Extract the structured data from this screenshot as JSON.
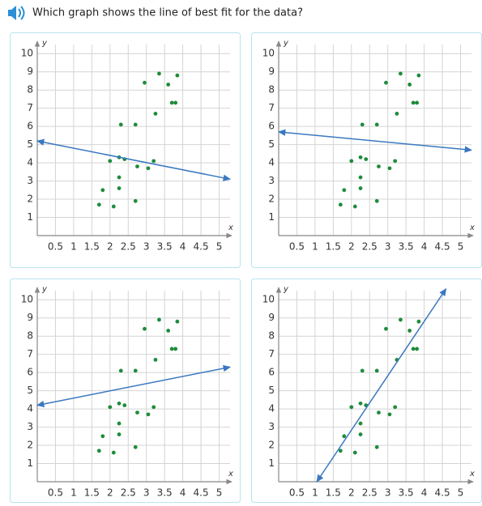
{
  "question": "Which graph shows the line of best fit for the data?",
  "chart_data": [
    {
      "type": "scatter",
      "x_label": "x",
      "y_label": "y",
      "xlim": [
        0,
        5.3
      ],
      "ylim": [
        0,
        10.5
      ],
      "xticks": [
        0.5,
        1,
        1.5,
        2,
        2.5,
        3,
        3.5,
        4,
        4.5,
        5
      ],
      "yticks": [
        1,
        2,
        3,
        4,
        5,
        6,
        7,
        8,
        9,
        10
      ],
      "grid": true,
      "color": "#1e8c3a",
      "x": [
        1.7,
        1.8,
        2.1,
        2,
        2.25,
        2.25,
        2.25,
        2.4,
        2.3,
        2.7,
        2.7,
        2.75,
        2.95,
        3.05,
        3.2,
        3.25,
        3.35,
        3.6,
        3.7,
        3.8,
        3.85
      ],
      "values": [
        1.7,
        2.5,
        1.6,
        4.1,
        3.2,
        2.6,
        4.3,
        4.2,
        6.1,
        6.1,
        1.9,
        3.8,
        8.4,
        3.7,
        4.1,
        6.7,
        8.9,
        8.3,
        7.3,
        7.3,
        8.8
      ],
      "line": {
        "x": [
          0,
          5.3
        ],
        "values": [
          5.2,
          3.1
        ],
        "color": "#3a78c0"
      }
    },
    {
      "type": "scatter",
      "x_label": "x",
      "y_label": "y",
      "xlim": [
        0,
        5.3
      ],
      "ylim": [
        0,
        10.5
      ],
      "xticks": [
        0.5,
        1,
        1.5,
        2,
        2.5,
        3,
        3.5,
        4,
        4.5,
        5
      ],
      "yticks": [
        1,
        2,
        3,
        4,
        5,
        6,
        7,
        8,
        9,
        10
      ],
      "grid": true,
      "color": "#1e8c3a",
      "x": [
        1.7,
        1.8,
        2.1,
        2,
        2.25,
        2.25,
        2.25,
        2.4,
        2.3,
        2.7,
        2.7,
        2.75,
        2.95,
        3.05,
        3.2,
        3.25,
        3.35,
        3.6,
        3.7,
        3.8,
        3.85
      ],
      "values": [
        1.7,
        2.5,
        1.6,
        4.1,
        3.2,
        2.6,
        4.3,
        4.2,
        6.1,
        6.1,
        1.9,
        3.8,
        8.4,
        3.7,
        4.1,
        6.7,
        8.9,
        8.3,
        7.3,
        7.3,
        8.8
      ],
      "line": {
        "x": [
          0,
          5.3
        ],
        "values": [
          5.7,
          4.7
        ],
        "color": "#3a78c0"
      }
    },
    {
      "type": "scatter",
      "x_label": "x",
      "y_label": "y",
      "xlim": [
        0,
        5.3
      ],
      "ylim": [
        0,
        10.5
      ],
      "xticks": [
        0.5,
        1,
        1.5,
        2,
        2.5,
        3,
        3.5,
        4,
        4.5,
        5
      ],
      "yticks": [
        1,
        2,
        3,
        4,
        5,
        6,
        7,
        8,
        9,
        10
      ],
      "grid": true,
      "color": "#1e8c3a",
      "x": [
        1.7,
        1.8,
        2.1,
        2,
        2.25,
        2.25,
        2.25,
        2.4,
        2.3,
        2.7,
        2.7,
        2.75,
        2.95,
        3.05,
        3.2,
        3.25,
        3.35,
        3.6,
        3.7,
        3.8,
        3.85
      ],
      "values": [
        1.7,
        2.5,
        1.6,
        4.1,
        3.2,
        2.6,
        4.3,
        4.2,
        6.1,
        6.1,
        1.9,
        3.8,
        8.4,
        3.7,
        4.1,
        6.7,
        8.9,
        8.3,
        7.3,
        7.3,
        8.8
      ],
      "line": {
        "x": [
          0,
          5.3
        ],
        "values": [
          4.2,
          6.3
        ],
        "color": "#3a78c0"
      }
    },
    {
      "type": "scatter",
      "x_label": "x",
      "y_label": "y",
      "xlim": [
        0,
        5.3
      ],
      "ylim": [
        0,
        10.5
      ],
      "xticks": [
        0.5,
        1,
        1.5,
        2,
        2.5,
        3,
        3.5,
        4,
        4.5,
        5
      ],
      "yticks": [
        1,
        2,
        3,
        4,
        5,
        6,
        7,
        8,
        9,
        10
      ],
      "grid": true,
      "color": "#1e8c3a",
      "x": [
        1.7,
        1.8,
        2.1,
        2,
        2.25,
        2.25,
        2.25,
        2.4,
        2.3,
        2.7,
        2.7,
        2.75,
        2.95,
        3.05,
        3.2,
        3.25,
        3.35,
        3.6,
        3.7,
        3.8,
        3.85
      ],
      "values": [
        1.7,
        2.5,
        1.6,
        4.1,
        3.2,
        2.6,
        4.3,
        4.2,
        6.1,
        6.1,
        1.9,
        3.8,
        8.4,
        3.7,
        4.1,
        6.7,
        8.9,
        8.3,
        7.3,
        7.3,
        8.8
      ],
      "line": {
        "x": [
          1.05,
          4.6
        ],
        "values": [
          0,
          10.6
        ],
        "color": "#3a78c0"
      }
    }
  ]
}
